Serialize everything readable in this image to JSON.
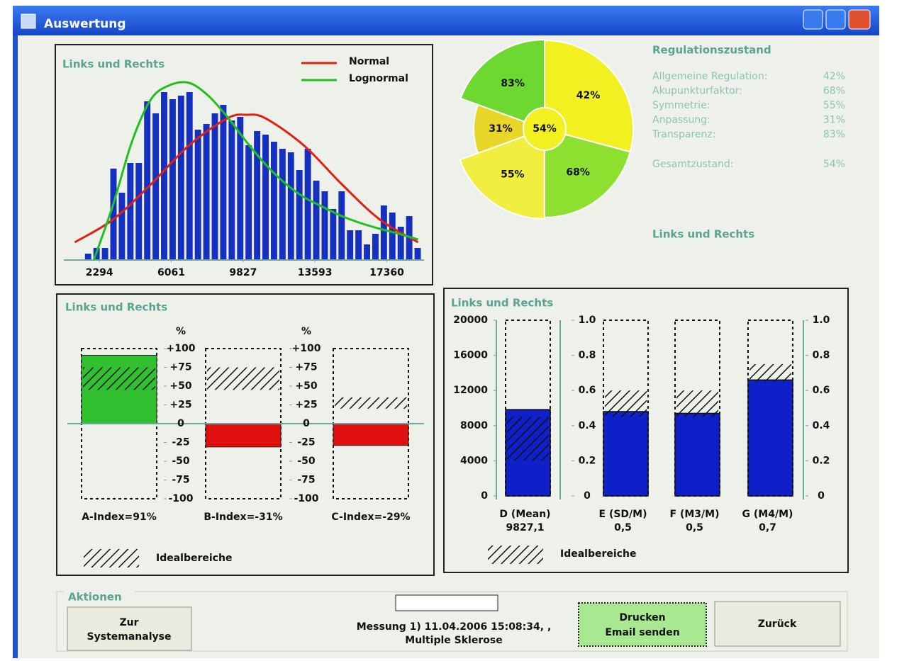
{
  "window_title": "Auswertung",
  "chart_data": [
    {
      "type": "histogram",
      "title": "Links und Rechts",
      "color": "#1530c0",
      "bins": [
        1480,
        1923,
        2366,
        2809,
        3252,
        3695,
        4138,
        4581,
        5024,
        5467,
        5910,
        6353,
        6796,
        7239,
        7682,
        8125,
        8568,
        9011,
        9454,
        9897,
        10340,
        10783,
        11226,
        11669,
        12112,
        12555,
        12998,
        13441,
        13884,
        14327,
        14770,
        15213,
        15656,
        16099,
        16542,
        16985,
        17428,
        17871,
        18314,
        18757,
        19200
      ],
      "values": [
        9,
        17,
        17,
        129,
        95,
        137,
        137,
        224,
        207,
        237,
        227,
        232,
        237,
        184,
        192,
        207,
        219,
        197,
        202,
        162,
        182,
        177,
        167,
        157,
        152,
        127,
        157,
        112,
        97,
        72,
        97,
        42,
        42,
        22,
        37,
        77,
        67,
        47,
        62,
        17
      ],
      "xlim": [
        800,
        19200
      ],
      "ylim": [
        0,
        260
      ],
      "xticks": [
        2294,
        6061,
        9827,
        13593,
        17360
      ],
      "curves": [
        {
          "name": "Normal",
          "color": "#e02010",
          "x": [
            1000,
            3000,
            5000,
            7000,
            9000,
            10000,
            11000,
            13000,
            15000,
            17000,
            19000
          ],
          "values": [
            25,
            57,
            107,
            162,
            200,
            205,
            200,
            162,
            107,
            57,
            25
          ]
        },
        {
          "name": "Lognormal",
          "color": "#20c020",
          "x": [
            2000,
            3000,
            4000,
            5000,
            6000,
            7000,
            8000,
            9000,
            10000,
            11000,
            12000,
            13000,
            14000,
            15000,
            16000,
            17000,
            18000,
            19000
          ],
          "values": [
            0,
            77,
            167,
            227,
            247,
            250,
            232,
            202,
            167,
            135,
            109,
            89,
            75,
            62,
            52,
            44,
            37,
            29
          ]
        }
      ],
      "legend": "top-right"
    },
    {
      "type": "pie",
      "values": [
        42,
        68,
        55,
        31,
        83
      ],
      "value_labels": [
        "42%",
        "68%",
        "55%",
        "31%",
        "83%"
      ],
      "colors": [
        "#f2f020",
        "#8ee030",
        "#f2ee40",
        "#e8d628",
        "#6cd830"
      ],
      "center": 54,
      "center_label": "54%",
      "center_color": "#f2f020"
    },
    {
      "type": "bar",
      "title": "Links und Rechts",
      "categories": [
        "A-Index=91%",
        "B-Index=-31%",
        "C-Index=-29%"
      ],
      "values": [
        91,
        -31,
        -29
      ],
      "colors": [
        "#30c030",
        "#e01010",
        "#e01010"
      ],
      "ideal": [
        [
          45,
          75
        ],
        [
          45,
          75
        ],
        [
          20,
          35
        ]
      ],
      "ylim": [
        -100,
        100
      ],
      "yticks": [
        {
          "value": 100,
          "label": "+100"
        },
        {
          "value": 75,
          "label": "+75"
        },
        {
          "value": 50,
          "label": "+50"
        },
        {
          "value": 25,
          "label": "+25"
        },
        0,
        -25,
        -50,
        -75,
        -100
      ],
      "unit": "%",
      "legend_label": "Idealbereiche"
    },
    {
      "type": "bar",
      "title": "Links und Rechts",
      "categories": [
        "D (Mean)",
        "E (SD/M)",
        "F (M3/M)",
        "G (M4/M)"
      ],
      "values": [
        9827.1,
        0.48,
        0.47,
        0.66
      ],
      "value_labels": [
        "9827,1",
        "0,5",
        "0,5",
        "0,7"
      ],
      "value_axis": [
        "y",
        "y2",
        "y2",
        "y2"
      ],
      "color": "#1020c8",
      "ideal": [
        [
          4000,
          9000
        ],
        [
          0.45,
          0.6
        ],
        [
          0.45,
          0.6
        ],
        [
          0.65,
          0.75
        ]
      ],
      "ylim": [
        0,
        20000
      ],
      "yticks": [
        0,
        4000,
        8000,
        12000,
        16000,
        20000
      ],
      "y2lim": [
        0,
        1
      ],
      "y2ticks": [
        0,
        0.2,
        0.4,
        0.6,
        0.8,
        {
          "value": 1,
          "label": "1.0"
        }
      ],
      "legend_label": "Idealbereiche"
    }
  ],
  "regulation": {
    "title": "Regulationszustand",
    "items": [
      {
        "label": "Allgemeine Regulation:",
        "value": "42%"
      },
      {
        "label": "Akupunkturfaktor:",
        "value": "68%"
      },
      {
        "label": "Symmetrie:",
        "value": "55%"
      },
      {
        "label": "Anpassung:",
        "value": "31%"
      },
      {
        "label": "Transparenz:",
        "value": "83%"
      }
    ],
    "total": {
      "label": "Gesamtzustand:",
      "value": "54%"
    },
    "footer": "Links und Rechts"
  },
  "actions": {
    "group": "Aktionen",
    "buttons": [
      [
        "Zur",
        "Systemanalyse"
      ],
      [
        "Drucken",
        "Email senden"
      ],
      [
        "Zurück"
      ]
    ],
    "measurement": "Messung 1) 11.04.2006 15:08:34, ,",
    "diagnosis": "Multiple Sklerose"
  }
}
